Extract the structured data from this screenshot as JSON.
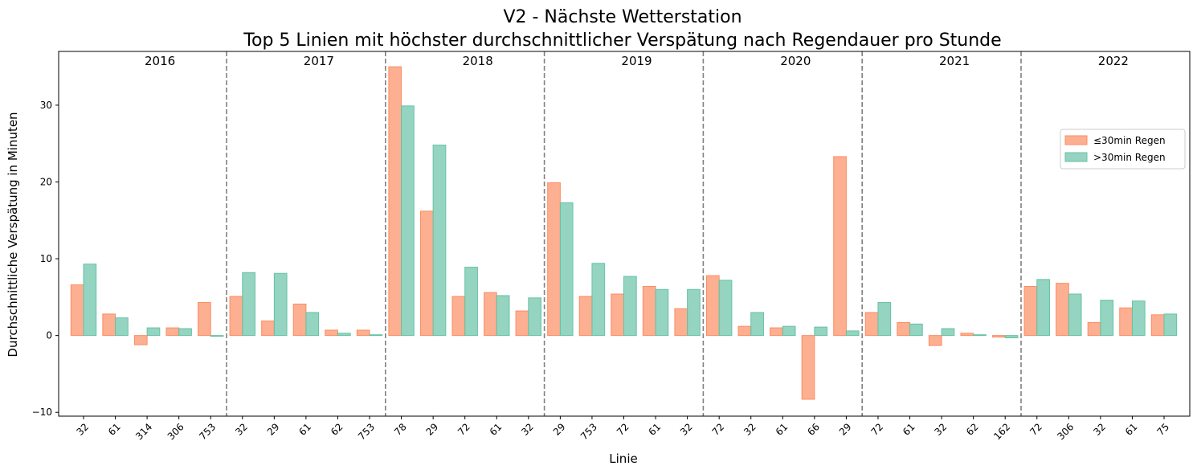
{
  "chart_data": {
    "type": "bar",
    "title_line1": "V2 - Nächste Wetterstation",
    "title_line2": "Top 5 Linien mit höchster durchschnittlicher Verspätung nach Regendauer pro Stunde",
    "xlabel": "Linie",
    "ylabel": "Durchschnittliche Verspätung in Minuten",
    "ylim": [
      -10.5,
      37
    ],
    "yticks": [
      -10,
      0,
      10,
      20,
      30
    ],
    "grid": false,
    "legend_position": "upper right",
    "colors": {
      "short": "#fc8d62",
      "long": "#66c2a5",
      "separator": "#808080"
    },
    "series": [
      {
        "name": "≤30min Regen",
        "key": "short"
      },
      {
        "name": ">30min Regen",
        "key": "long"
      }
    ],
    "groups": [
      {
        "year": "2016",
        "lines": [
          "32",
          "61",
          "314",
          "306",
          "753"
        ],
        "short": [
          6.6,
          2.8,
          -1.2,
          1.0,
          4.3
        ],
        "long": [
          9.3,
          2.3,
          1.0,
          0.9,
          -0.1
        ]
      },
      {
        "year": "2017",
        "lines": [
          "32",
          "29",
          "61",
          "62",
          "753"
        ],
        "short": [
          5.1,
          1.9,
          4.1,
          0.7,
          0.7
        ],
        "long": [
          8.2,
          8.1,
          3.0,
          0.3,
          0.1
        ]
      },
      {
        "year": "2018",
        "lines": [
          "78",
          "29",
          "72",
          "61",
          "32"
        ],
        "short": [
          35.0,
          16.2,
          5.1,
          5.6,
          3.2
        ],
        "long": [
          29.9,
          24.8,
          8.9,
          5.2,
          4.9
        ]
      },
      {
        "year": "2019",
        "lines": [
          "29",
          "753",
          "72",
          "61",
          "32"
        ],
        "short": [
          19.9,
          5.1,
          5.4,
          6.4,
          3.5
        ],
        "long": [
          17.3,
          9.4,
          7.7,
          6.0,
          6.0
        ]
      },
      {
        "year": "2020",
        "lines": [
          "72",
          "32",
          "61",
          "66",
          "29"
        ],
        "short": [
          7.8,
          1.2,
          1.0,
          -8.3,
          23.3
        ],
        "long": [
          7.2,
          3.0,
          1.2,
          1.1,
          0.6
        ]
      },
      {
        "year": "2021",
        "lines": [
          "72",
          "61",
          "32",
          "62",
          "162"
        ],
        "short": [
          3.0,
          1.7,
          -1.3,
          0.3,
          -0.2
        ],
        "long": [
          4.3,
          1.5,
          0.9,
          0.1,
          -0.3
        ]
      },
      {
        "year": "2022",
        "lines": [
          "72",
          "306",
          "32",
          "61",
          "75"
        ],
        "short": [
          6.4,
          6.8,
          1.7,
          3.6,
          2.7
        ],
        "long": [
          7.3,
          5.4,
          4.6,
          4.5,
          2.8
        ]
      }
    ]
  }
}
